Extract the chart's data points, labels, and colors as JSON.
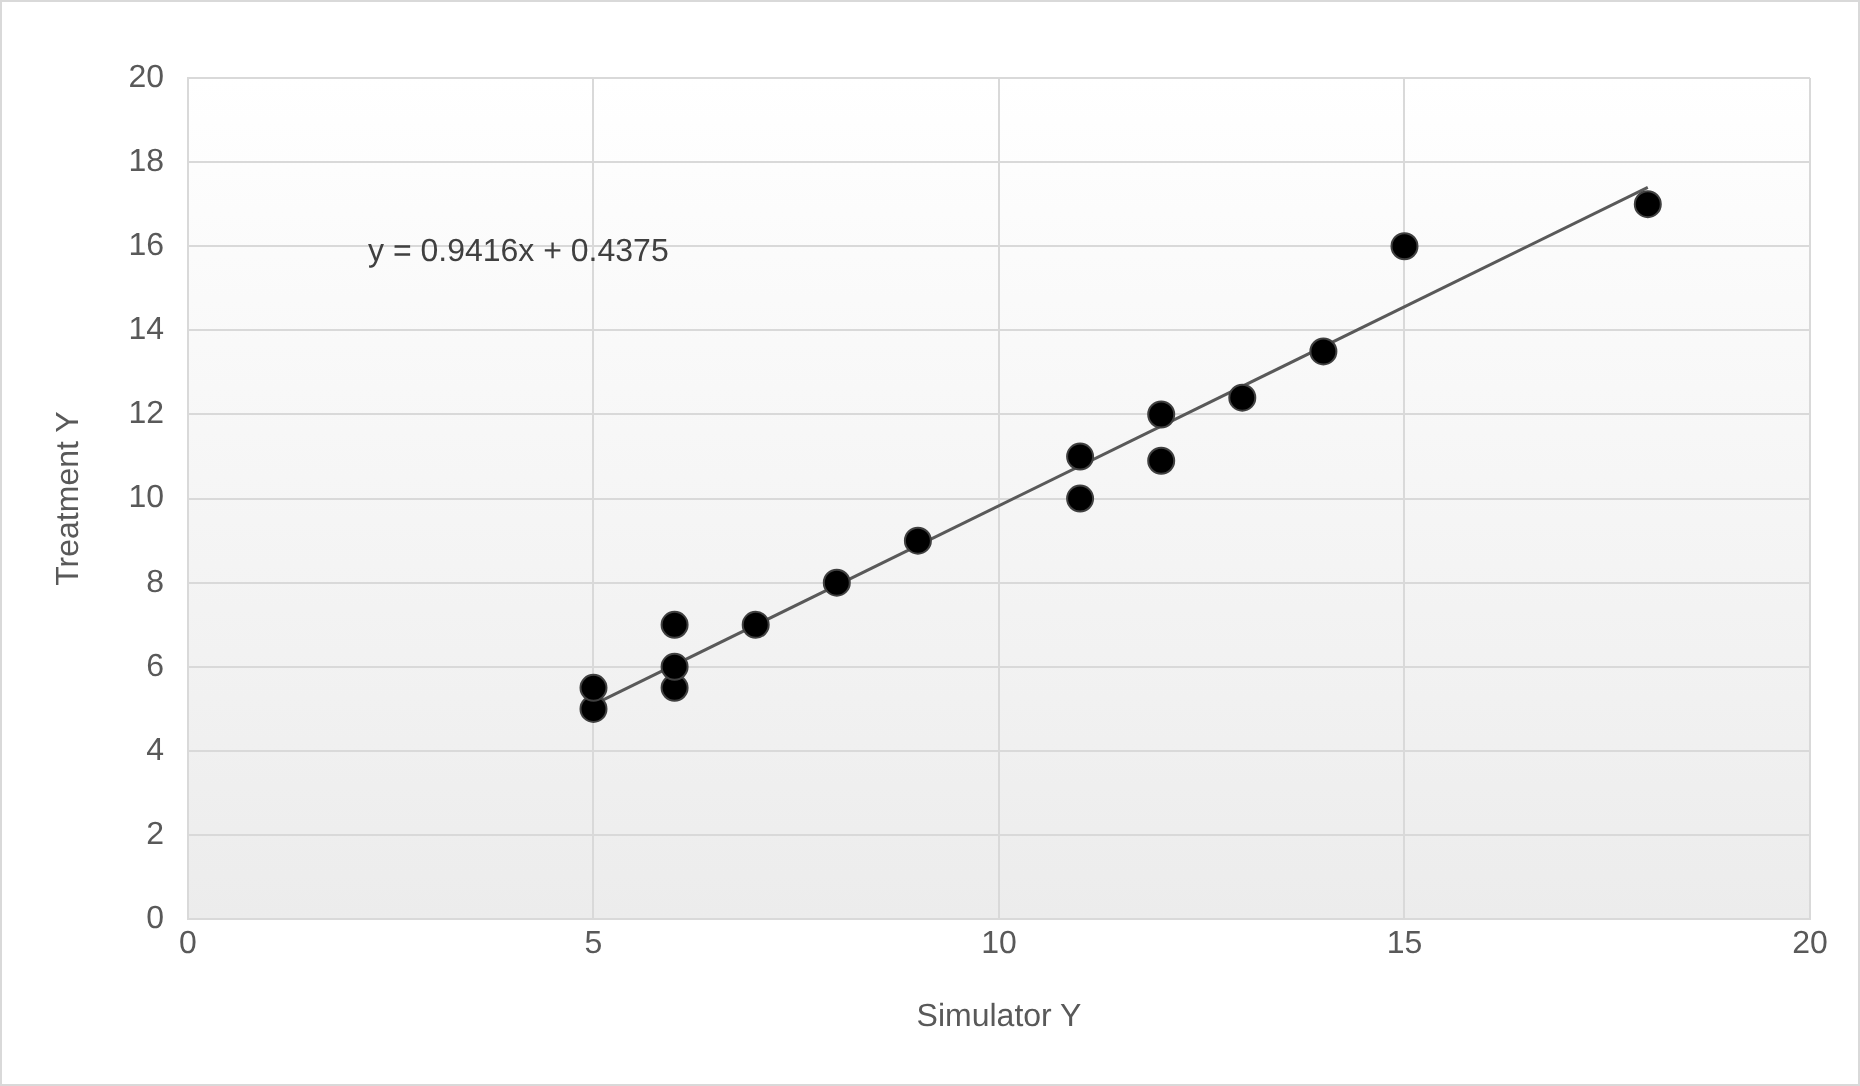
{
  "chart_data": {
    "type": "scatter",
    "xlabel": "Simulator Y",
    "ylabel": "Treatment Y",
    "xlim": [
      0,
      20
    ],
    "ylim": [
      0,
      20
    ],
    "xticks": [
      0,
      5,
      10,
      15,
      20
    ],
    "yticks": [
      0,
      2,
      4,
      6,
      8,
      10,
      12,
      14,
      16,
      18,
      20
    ],
    "grid": true,
    "legend": false,
    "annotations": [
      "y = 0.9416x + 0.4375"
    ],
    "series": [
      {
        "color": "#000000",
        "marker": "circle",
        "x": [
          5,
          5,
          6,
          6,
          6,
          7,
          8,
          9,
          11,
          11,
          12,
          12,
          13,
          14,
          15,
          18
        ],
        "values": [
          5,
          5.5,
          5.5,
          6,
          7,
          7,
          8,
          9,
          10,
          11,
          10.9,
          12,
          12.4,
          13.5,
          16,
          17
        ]
      },
      {
        "type": "line",
        "color": "#595959",
        "marker": "none",
        "x": [
          5,
          18
        ],
        "values": [
          5.1,
          17.4
        ]
      }
    ]
  }
}
